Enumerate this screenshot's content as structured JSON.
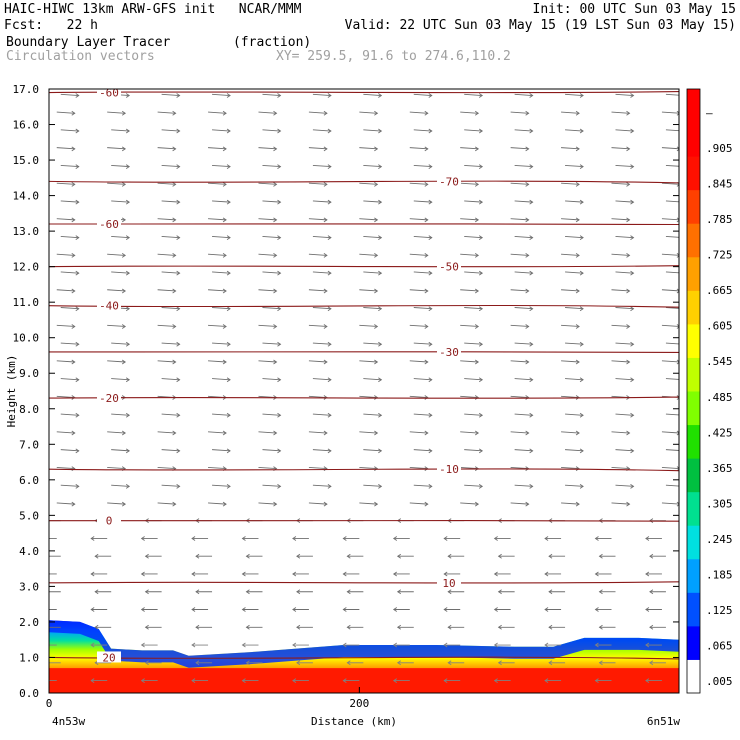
{
  "header": {
    "model_line": "HAIC-HIWC 13km ARW-GFS init   NCAR/MMM",
    "init_line": "Init: 00 UTC Sun 03 May 15",
    "fcst_line": "Fcst:   22 h",
    "valid_line": "Valid: 22 UTC Sun 03 May 15 (19 LST Sun 03 May 15)",
    "field_line": "Boundary Layer Tracer        (fraction)",
    "vector_line": "Circulation vectors",
    "xy_line": "XY= 259.5, 91.6 to 274.6,110.2"
  },
  "chart_data": {
    "type": "heatmap",
    "ylabel": "Height (km)",
    "xlabel": "Distance (km)",
    "xlim": [
      0,
      406
    ],
    "ylim": [
      0,
      17
    ],
    "yticks": [
      "0.0",
      "1.0",
      "2.0",
      "3.0",
      "4.0",
      "5.0",
      "6.0",
      "7.0",
      "8.0",
      "9.0",
      "10.0",
      "11.0",
      "12.0",
      "13.0",
      "14.0",
      "15.0",
      "16.0",
      "17.0"
    ],
    "xticks": [
      "0",
      "200"
    ],
    "x_endpoint_labels": [
      "4n53w",
      "6n51w"
    ],
    "colorbar": {
      "labels": [
        ".005",
        ".065",
        ".125",
        ".185",
        ".245",
        ".305",
        ".365",
        ".425",
        ".485",
        ".545",
        ".605",
        ".665",
        ".725",
        ".785",
        ".845",
        ".905",
        "–"
      ],
      "colors": [
        "#ffffff",
        "#0000ff",
        "#0050ff",
        "#00a0ff",
        "#00e0e0",
        "#00e090",
        "#00c040",
        "#20e000",
        "#80ff00",
        "#c0ff00",
        "#ffff00",
        "#ffd000",
        "#ffa000",
        "#ff7000",
        "#ff4000",
        "#ff1000",
        "#ff0000",
        "#ff0000"
      ]
    },
    "temperature_contours": [
      {
        "value": 20,
        "label": "20",
        "height_km": 1.0
      },
      {
        "value": 10,
        "label": "10",
        "height_km": 3.1
      },
      {
        "value": 0,
        "label": "0",
        "height_km": 4.85
      },
      {
        "value": -10,
        "label": "-10",
        "height_km": 6.3
      },
      {
        "value": -20,
        "label": "-20",
        "height_km": 8.3
      },
      {
        "value": -30,
        "label": "-30",
        "height_km": 9.6
      },
      {
        "value": -40,
        "label": "-40",
        "height_km": 10.9
      },
      {
        "value": -50,
        "label": "-50",
        "height_km": 12.0
      },
      {
        "value": -60,
        "label": "-60",
        "height_km": 13.2
      },
      {
        "value": -70,
        "label": "-70",
        "height_km": 14.4
      },
      {
        "value": -60,
        "label": "-60",
        "height_km": 16.9
      }
    ]
  }
}
